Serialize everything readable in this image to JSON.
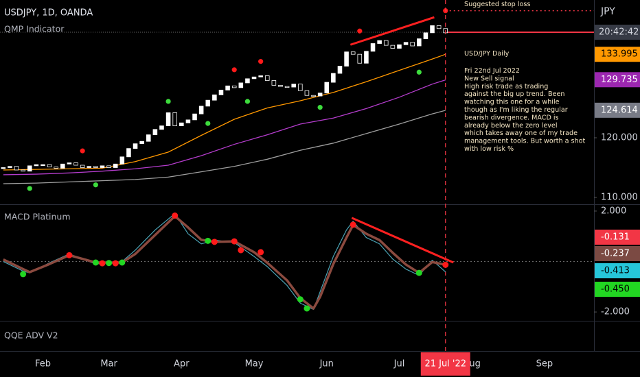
{
  "chart_data": [
    {
      "type": "candlestick",
      "title": "USDJPY, 1D, OANDA",
      "subtitle": "QMP Indicator",
      "axis_label": "JPY",
      "categories": [
        null,
        null,
        null,
        null,
        null,
        null,
        "Feb",
        null,
        null,
        null,
        null,
        null,
        null,
        null,
        null,
        null,
        "Mar",
        null,
        null,
        null,
        null,
        null,
        null,
        null,
        null,
        null,
        null,
        "Apr",
        null,
        null,
        null,
        null,
        null,
        null,
        null,
        null,
        null,
        null,
        "May",
        null,
        null,
        null,
        null,
        null,
        null,
        null,
        null,
        null,
        null,
        "Jun",
        null,
        null,
        null,
        null,
        null,
        null,
        null,
        null,
        null,
        null,
        "Jul",
        null,
        null,
        null,
        null,
        null,
        null,
        null,
        null,
        null,
        null,
        "Aug",
        null,
        null,
        null,
        null,
        null,
        null,
        null,
        null,
        null,
        null,
        "Sep",
        null,
        null,
        null,
        null,
        null,
        null,
        null
      ],
      "values": [
        115.0,
        115.2,
        114.6,
        114.4,
        115.3,
        115.5,
        115.5,
        115.1,
        114.9,
        115.6,
        115.8,
        115.4,
        115.0,
        115.2,
        115.0,
        115.3,
        115.0,
        115.6,
        116.8,
        118.2,
        119.0,
        119.4,
        120.5,
        121.4,
        122.0,
        124.2,
        122.0,
        122.5,
        123.0,
        124.0,
        125.3,
        126.3,
        127.2,
        128.0,
        128.7,
        128.4,
        129.2,
        129.9,
        130.2,
        130.4,
        129.6,
        128.8,
        128.6,
        128.5,
        129.0,
        127.9,
        127.1,
        127.0,
        127.5,
        129.3,
        130.8,
        132.0,
        134.4,
        134.0,
        132.5,
        134.5,
        135.8,
        136.3,
        135.5,
        135.0,
        135.6,
        136.0,
        135.4,
        136.6,
        137.6,
        138.8,
        138.3,
        137.6,
        null,
        null,
        null,
        null,
        null,
        null,
        null,
        null,
        null,
        null,
        null,
        null,
        null,
        null,
        null,
        null,
        null,
        null,
        null,
        null,
        null,
        null
      ],
      "up_color": "#ffffff",
      "down_color": "#000000",
      "ylim": [
        108.85,
        143.1
      ],
      "yticks": [
        {
          "value": 110,
          "label": "110.000"
        },
        {
          "value": 120,
          "label": "120.000"
        }
      ],
      "series": [
        {
          "type": "line",
          "color": "#ff9800",
          "x": [
            0,
            5,
            10,
            15,
            20,
            25,
            30,
            35,
            40,
            45,
            50,
            55,
            60,
            65,
            67
          ],
          "values": [
            114.6,
            114.7,
            114.8,
            114.9,
            116.0,
            117.6,
            120.4,
            123.1,
            125.0,
            126.2,
            127.6,
            129.4,
            131.3,
            133.2,
            134.0
          ]
        },
        {
          "type": "line",
          "color": "#b43ccc",
          "x": [
            0,
            5,
            10,
            15,
            20,
            25,
            30,
            35,
            40,
            45,
            50,
            55,
            60,
            65,
            67
          ],
          "values": [
            113.8,
            113.9,
            114.1,
            114.4,
            114.8,
            115.4,
            117.0,
            118.9,
            120.5,
            122.3,
            123.3,
            124.9,
            126.8,
            129.0,
            129.7
          ]
        },
        {
          "type": "line",
          "color": "#9e9e9e",
          "x": [
            0,
            5,
            10,
            15,
            20,
            25,
            30,
            35,
            40,
            45,
            50,
            55,
            60,
            65,
            67
          ],
          "values": [
            112.3,
            112.4,
            112.6,
            112.8,
            113.0,
            113.4,
            114.3,
            115.2,
            116.4,
            117.9,
            119.1,
            120.7,
            122.3,
            124.0,
            124.6
          ]
        }
      ],
      "signals": [
        {
          "type": "scatter",
          "color": "#ff1a1a",
          "x": [
            12,
            35,
            39,
            54,
            67
          ],
          "values": [
            117.8,
            131.4,
            132.8,
            137.9,
            141.3
          ]
        },
        {
          "type": "scatter",
          "color": "#3ddc3d",
          "x": [
            4,
            14,
            25,
            31,
            37,
            48,
            63
          ],
          "values": [
            111.5,
            112.1,
            126.1,
            122.4,
            126.1,
            125.1,
            131.0
          ]
        }
      ],
      "trendline": {
        "color": "#ff2020",
        "x": [
          52.6,
          65.3
        ],
        "values": [
          135.6,
          140.2
        ]
      },
      "price_tags": [
        {
          "value": 133.995,
          "color": "#ff9800",
          "text_color": "#000000"
        },
        {
          "value": 129.735,
          "color": "#9c27b0",
          "text_color": "#ffffff"
        },
        {
          "value": 124.614,
          "color": "#787b86",
          "text_color": "#ffffff"
        }
      ],
      "last_price": 137.7,
      "countdown": "20:42:42",
      "stop_loss": {
        "label": "Suggested stop loss",
        "value": 141.3
      },
      "annotation": {
        "title": "USD/JPY Daily",
        "lines": [
          "Fri 22nd Jul 2022",
          "New Sell signal",
          "High risk trade as trading",
          "against the big up trend. Been",
          "watching this one for a while",
          "though as I'm liking the regular",
          "bearish divergence. MACD is",
          "already below the zero level",
          "which takes away one of my trade",
          "management tools. But worth a shot",
          "with low risk %"
        ]
      },
      "cursor_date": "21 Jul '22"
    },
    {
      "type": "line",
      "title": "MACD Platinum",
      "ylim": [
        -2.35,
        2.27
      ],
      "yticks": [
        {
          "value": 2,
          "label": "2.000"
        },
        {
          "value": -2,
          "label": "-2.000"
        }
      ],
      "series": [
        {
          "color": "#4aa3b5",
          "width": 1.2,
          "x": [
            0,
            3,
            4,
            7,
            10,
            14,
            18,
            20,
            23,
            26,
            28,
            30,
            32,
            35,
            38,
            40,
            43,
            45,
            47,
            48,
            50,
            52,
            53,
            55,
            57,
            59,
            61,
            63,
            65,
            67
          ],
          "values": [
            0.0,
            -0.38,
            -0.45,
            -0.05,
            0.3,
            -0.1,
            0.0,
            0.45,
            1.25,
            1.9,
            1.1,
            0.7,
            0.85,
            0.75,
            0.2,
            -0.2,
            -0.95,
            -1.65,
            -1.9,
            -1.2,
            0.2,
            1.25,
            1.6,
            0.95,
            0.7,
            0.1,
            -0.3,
            -0.55,
            0.05,
            -0.41
          ]
        },
        {
          "color": "#8b4a3f",
          "width": 3.5,
          "x": [
            0,
            3,
            4,
            7,
            10,
            14,
            18,
            20,
            23,
            26,
            28,
            30,
            32,
            35,
            38,
            40,
            43,
            45,
            47,
            48,
            50,
            52,
            53,
            55,
            57,
            59,
            61,
            63,
            65,
            67
          ],
          "values": [
            0.08,
            -0.3,
            -0.42,
            -0.1,
            0.25,
            -0.04,
            -0.04,
            0.3,
            1.05,
            1.8,
            1.35,
            0.86,
            0.78,
            0.8,
            0.37,
            -0.05,
            -0.75,
            -1.45,
            -1.86,
            -1.4,
            -0.1,
            0.95,
            1.45,
            1.1,
            0.85,
            0.35,
            -0.12,
            -0.45,
            -0.02,
            -0.13
          ]
        }
      ],
      "dots": [
        {
          "color": "#ff1a1a",
          "x": [
            10,
            15,
            17,
            26,
            32,
            35,
            36,
            39,
            53,
            67
          ],
          "values": [
            0.25,
            -0.07,
            -0.07,
            1.82,
            0.78,
            0.8,
            0.45,
            0.37,
            1.46,
            -0.13
          ]
        },
        {
          "color": "#22d622",
          "x": [
            3,
            14,
            16,
            18,
            31,
            45,
            46,
            63
          ],
          "values": [
            -0.5,
            -0.04,
            -0.06,
            -0.04,
            0.82,
            -1.5,
            -1.86,
            -0.45
          ]
        }
      ],
      "trendline": {
        "color": "#ff2020",
        "x": [
          52.8,
          68.2
        ],
        "values": [
          1.73,
          -0.04
        ]
      },
      "value_tags": [
        {
          "value": -0.131,
          "color": "#f23645",
          "text_color": "#ffffff"
        },
        {
          "value": -0.237,
          "color": "#7b4a43",
          "text_color": "#ffffff"
        },
        {
          "value": -0.413,
          "color": "#26c6da",
          "text_color": "#000000"
        },
        {
          "value": -0.45,
          "label": "-0.450",
          "color": "#22d622",
          "text_color": "#000000"
        }
      ]
    },
    {
      "type": "panel",
      "title": "QQE ADV V2"
    }
  ]
}
